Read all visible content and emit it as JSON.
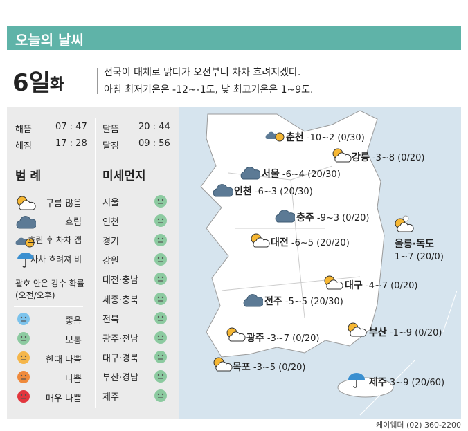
{
  "header": {
    "title": "오늘의 날씨",
    "day": "6일",
    "weekday": "화",
    "summary": [
      "전국이 대체로 맑다가 오전부터 차차 흐려지겠다.",
      "아침 최저기온은 -12~-1도, 낮 최고기온은 1~9도."
    ]
  },
  "sun_moon": [
    {
      "label": "해뜸",
      "time": "07 : 47"
    },
    {
      "label": "해짐",
      "time": "17 : 28"
    },
    {
      "label": "달뜸",
      "time": "20 : 44"
    },
    {
      "label": "달짐",
      "time": "09 : 56"
    }
  ],
  "legend": {
    "title": "범 례",
    "weather": [
      "구름 많음",
      "흐림",
      "흐린 후 차차 갬",
      "차차 흐려져 비"
    ],
    "note": [
      "괄호 안은 강수 확률",
      "(오전/오후)"
    ],
    "dust_levels": [
      "좋음",
      "보통",
      "한때 나쁨",
      "나쁨",
      "매우 나쁨"
    ]
  },
  "fine_dust": {
    "title": "미세먼지",
    "regions": [
      "서울",
      "인천",
      "경기",
      "강원",
      "대전·충남",
      "세종·충북",
      "전북",
      "광주·전남",
      "대구·경북",
      "부산·경남",
      "제주"
    ]
  },
  "cities": [
    {
      "name": "춘천",
      "forecast": "-10~2 (0/30)"
    },
    {
      "name": "강릉",
      "forecast": "-3~8 (0/20)"
    },
    {
      "name": "서울",
      "forecast": "-6~4 (20/30)"
    },
    {
      "name": "인천",
      "forecast": "-6~3 (20/30)"
    },
    {
      "name": "충주",
      "forecast": "-9~3 (0/20)"
    },
    {
      "name": "대전",
      "forecast": "-6~5 (20/20)"
    },
    {
      "name": "울릉·독도",
      "forecast": "1~7 (20/0)"
    },
    {
      "name": "대구",
      "forecast": "-4~7 (0/20)"
    },
    {
      "name": "전주",
      "forecast": "-5~5 (20/30)"
    },
    {
      "name": "광주",
      "forecast": "-3~7 (0/20)"
    },
    {
      "name": "부산",
      "forecast": "-1~9 (0/20)"
    },
    {
      "name": "목포",
      "forecast": "-3~5 (0/20)"
    },
    {
      "name": "제주",
      "forecast": "3~9 (20/60)"
    }
  ],
  "footer": "케이웨더 (02) 360-2200"
}
